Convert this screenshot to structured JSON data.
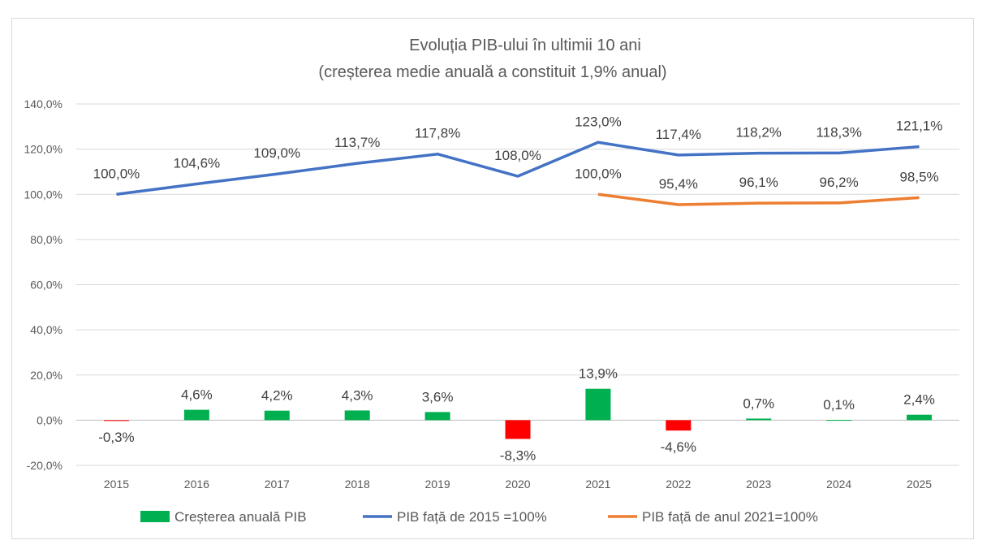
{
  "chart_data": {
    "type": "bar+line",
    "title": "Evoluția PIB-ului în ultimii 10 ani",
    "subtitle": "(creșterea medie anuală a constituit 1,9% anual)",
    "categories": [
      "2015",
      "2016",
      "2017",
      "2018",
      "2019",
      "2020",
      "2021",
      "2022",
      "2023",
      "2024",
      "2025"
    ],
    "ylim": [
      -20,
      140
    ],
    "yticks": [
      -20,
      0,
      20,
      40,
      60,
      80,
      100,
      120,
      140
    ],
    "ytick_labels": [
      "-20,0%",
      "0,0%",
      "20,0%",
      "40,0%",
      "60,0%",
      "80,0%",
      "100,0%",
      "120,0%",
      "140,0%"
    ],
    "grid": true,
    "legend_position": "bottom",
    "series": [
      {
        "name": "Creșterea anuală PIB",
        "type": "bar",
        "values": [
          -0.3,
          4.6,
          4.2,
          4.3,
          3.6,
          -8.3,
          13.9,
          -4.6,
          0.7,
          0.1,
          2.4
        ],
        "labels": [
          "-0,3%",
          "4,6%",
          "4,2%",
          "4,3%",
          "3,6%",
          "-8,3%",
          "13,9%",
          "-4,6%",
          "0,7%",
          "0,1%",
          "2,4%"
        ],
        "color_positive": "#00b050",
        "color_negative": "#ff0000"
      },
      {
        "name": "PIB față de 2015 =100%",
        "type": "line",
        "values": [
          100.0,
          104.6,
          109.0,
          113.7,
          117.8,
          108.0,
          123.0,
          117.4,
          118.2,
          118.3,
          121.1
        ],
        "labels": [
          "100,0%",
          "104,6%",
          "109,0%",
          "113,7%",
          "117,8%",
          "108,0%",
          "123,0%",
          "117,4%",
          "118,2%",
          "118,3%",
          "121,1%"
        ],
        "color": "#4472c4"
      },
      {
        "name": "PIB față de anul 2021=100%",
        "type": "line",
        "values": [
          null,
          null,
          null,
          null,
          null,
          null,
          100.0,
          95.4,
          96.1,
          96.2,
          98.5
        ],
        "labels": [
          null,
          null,
          null,
          null,
          null,
          null,
          "100,0%",
          "95,4%",
          "96,1%",
          "96,2%",
          "98,5%"
        ],
        "color": "#ed7d31"
      }
    ]
  }
}
